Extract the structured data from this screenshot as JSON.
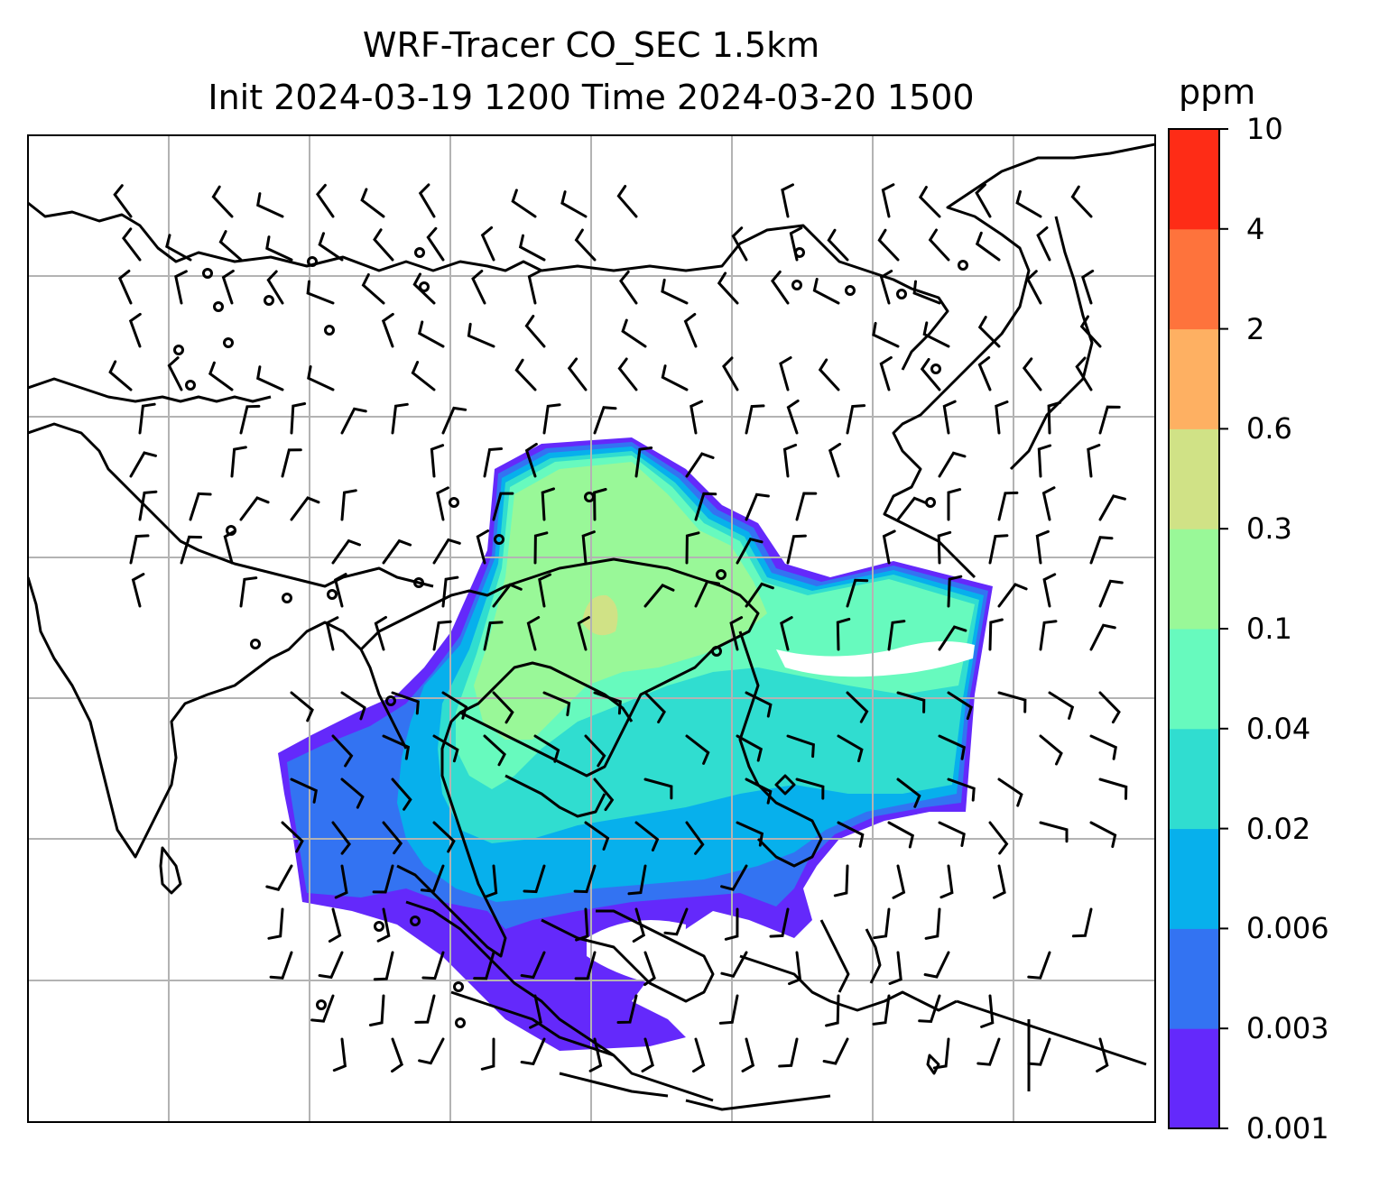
{
  "title_line1": "WRF-Tracer CO_SEC 1.5km",
  "title_line2": "Init 2024-03-19 1200 Time 2024-03-20 1500",
  "colorbar": {
    "unit": "ppm",
    "levels": [
      "0.001",
      "0.003",
      "0.006",
      "0.02",
      "0.04",
      "0.1",
      "0.3",
      "0.6",
      "2",
      "4",
      "10"
    ],
    "colors": [
      "#6429fb",
      "#3373f2",
      "#07b0ec",
      "#30ddd0",
      "#67fabe",
      "#99f898",
      "#d0e286",
      "#feb062",
      "#fe733c",
      "#fe2c16"
    ]
  },
  "map": {
    "plume_palette": [
      "#6429fb",
      "#3373f2",
      "#07b0ec",
      "#30ddd0",
      "#67fabe",
      "#99f898",
      "#d0e286"
    ],
    "gridline_color": "#b3b3b3",
    "symbols": [
      "coastline",
      "wind-barb",
      "calm-circle"
    ]
  }
}
